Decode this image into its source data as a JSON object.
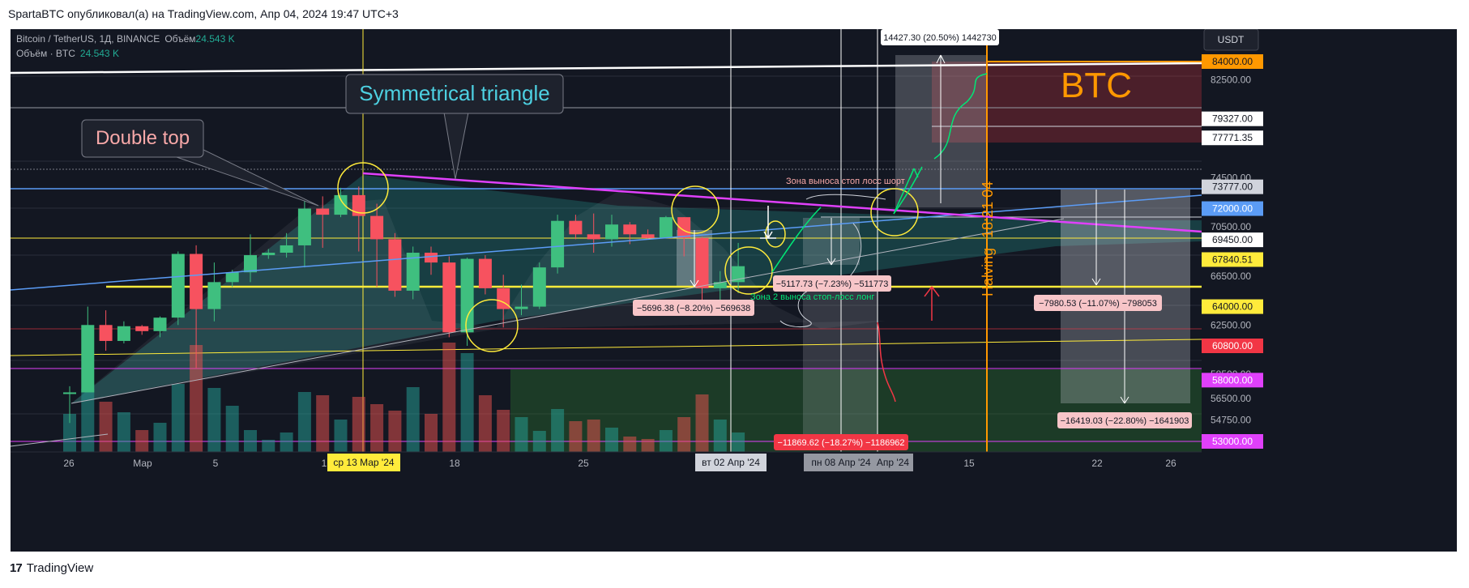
{
  "caption": "SpartaBTC опубликовал(а) на TradingView.com, Апр 04, 2024 19:47 UTC+3",
  "legend": {
    "symbol": "Bitcoin / TetherUS, 1Д, BINANCE",
    "volume_label": "Объём",
    "volume_value": "24.543 K",
    "row2_label": "Объём · BTC",
    "row2_value": "24.543 K"
  },
  "currency": "USDT",
  "price_axis": {
    "ticks": [
      "82500.00",
      "74500.00",
      "70500.00",
      "66500.00",
      "62500.00",
      "58500.00",
      "56500.00",
      "54750.00"
    ],
    "badges": [
      {
        "text": "84000.00",
        "color": "#ff9800",
        "fg": "#131722",
        "value": 84000
      },
      {
        "text": "79327.00",
        "color": "#ffffff",
        "fg": "#131722",
        "value": 79327
      },
      {
        "text": "77771.35",
        "color": "#ffffff",
        "fg": "#131722",
        "value": 77771.35
      },
      {
        "text": "73777.00",
        "color": "#d1d4dc",
        "fg": "#131722",
        "value": 73777
      },
      {
        "text": "72000.00",
        "color": "#5b9cf6",
        "fg": "#ffffff",
        "value": 72000
      },
      {
        "text": "69450.00",
        "color": "#ffffff",
        "fg": "#131722",
        "value": 69450
      },
      {
        "text": "67840.51",
        "color": "#ffeb3b",
        "fg": "#131722",
        "value": 67840.51
      },
      {
        "text": "64000.00",
        "color": "#ffeb3b",
        "fg": "#131722",
        "value": 64000
      },
      {
        "text": "60800.00",
        "color": "#f23645",
        "fg": "#ffffff",
        "value": 60800
      },
      {
        "text": "58000.00",
        "color": "#e040fb",
        "fg": "#ffffff",
        "value": 58000
      },
      {
        "text": "53000.00",
        "color": "#e040fb",
        "fg": "#ffffff",
        "value": 53000
      }
    ]
  },
  "time_axis": {
    "ticks": [
      "26",
      "Мар",
      "5",
      "1",
      "18",
      "25",
      "15",
      "22",
      "26"
    ],
    "highlight_1": "ср 13 Мар '24",
    "highlight_2": "вт 02 Апр '24",
    "highlight_3": "пн 08 Апр '24",
    "highlight_3_tail": "Апр '24"
  },
  "annotations": {
    "double_top": "Double top",
    "symmetrical_triangle": "Symmetrical triangle",
    "btc": "BTC",
    "halving": "Halving",
    "halving_countdown": "18:21 04",
    "zone_short": "Зона выноса стоп лосс шорт",
    "zone_long": "Зона 2 выноса стоп-лосс лонг"
  },
  "measures": {
    "m1": "14427.30 (20.50%) 1442730",
    "m2": "−5117.73 (−7.23%) −511773",
    "m3": "−5696.38 (−8.20%) −569638",
    "m4": "−7980.53 (−11.07%) −798053",
    "m5": "−16419.03 (−22.80%) −1641903",
    "m6": "−11869.62 (−18.27%) −1186962"
  },
  "chart_data": {
    "type": "candlestick",
    "candles": [
      {
        "date": "2024-02-27",
        "open": 57000,
        "high": 57500,
        "low": 54500,
        "close": 57000
      },
      {
        "date": "2024-02-28",
        "open": 57000,
        "high": 64000,
        "low": 57000,
        "close": 62500
      },
      {
        "date": "2024-02-29",
        "open": 62500,
        "high": 63700,
        "low": 60400,
        "close": 61200
      },
      {
        "date": "2024-03-01",
        "open": 61200,
        "high": 62800,
        "low": 61000,
        "close": 62400
      },
      {
        "date": "2024-03-02",
        "open": 62400,
        "high": 62500,
        "low": 61700,
        "close": 62000
      },
      {
        "date": "2024-03-03",
        "open": 62000,
        "high": 63200,
        "low": 61500,
        "close": 63100
      },
      {
        "date": "2024-03-04",
        "open": 63100,
        "high": 68500,
        "low": 62500,
        "close": 68300
      },
      {
        "date": "2024-03-05",
        "open": 68300,
        "high": 69000,
        "low": 59000,
        "close": 63800
      },
      {
        "date": "2024-03-06",
        "open": 63800,
        "high": 67600,
        "low": 62800,
        "close": 66000
      },
      {
        "date": "2024-03-07",
        "open": 66000,
        "high": 67000,
        "low": 65600,
        "close": 66800
      },
      {
        "date": "2024-03-08",
        "open": 66800,
        "high": 69900,
        "low": 66000,
        "close": 68200
      },
      {
        "date": "2024-03-09",
        "open": 68200,
        "high": 68700,
        "low": 67900,
        "close": 68400
      },
      {
        "date": "2024-03-10",
        "open": 68400,
        "high": 70000,
        "low": 68000,
        "close": 69000
      },
      {
        "date": "2024-03-11",
        "open": 69000,
        "high": 72800,
        "low": 67200,
        "close": 72000
      },
      {
        "date": "2024-03-12",
        "open": 72000,
        "high": 73000,
        "low": 68800,
        "close": 71500
      },
      {
        "date": "2024-03-13",
        "open": 71500,
        "high": 73700,
        "low": 71300,
        "close": 73100
      },
      {
        "date": "2024-03-14",
        "open": 73100,
        "high": 73800,
        "low": 68500,
        "close": 71400
      },
      {
        "date": "2024-03-15",
        "open": 71400,
        "high": 72400,
        "low": 65600,
        "close": 69500
      },
      {
        "date": "2024-03-16",
        "open": 69500,
        "high": 70000,
        "low": 64800,
        "close": 65300
      },
      {
        "date": "2024-03-17",
        "open": 65300,
        "high": 68900,
        "low": 64600,
        "close": 68400
      },
      {
        "date": "2024-03-18",
        "open": 68400,
        "high": 68900,
        "low": 66600,
        "close": 67600
      },
      {
        "date": "2024-03-19",
        "open": 67600,
        "high": 68100,
        "low": 61500,
        "close": 61900
      },
      {
        "date": "2024-03-20",
        "open": 61900,
        "high": 68000,
        "low": 60800,
        "close": 67900
      },
      {
        "date": "2024-03-21",
        "open": 67900,
        "high": 68200,
        "low": 65000,
        "close": 65500
      },
      {
        "date": "2024-03-22",
        "open": 65500,
        "high": 66600,
        "low": 62300,
        "close": 63800
      },
      {
        "date": "2024-03-23",
        "open": 63800,
        "high": 65800,
        "low": 63300,
        "close": 64000
      },
      {
        "date": "2024-03-24",
        "open": 64000,
        "high": 67600,
        "low": 63800,
        "close": 67200
      },
      {
        "date": "2024-03-25",
        "open": 67200,
        "high": 71500,
        "low": 66700,
        "close": 71000
      },
      {
        "date": "2024-03-26",
        "open": 71000,
        "high": 71500,
        "low": 69500,
        "close": 69900
      },
      {
        "date": "2024-03-27",
        "open": 69900,
        "high": 71600,
        "low": 68400,
        "close": 69500
      },
      {
        "date": "2024-03-28",
        "open": 69500,
        "high": 71500,
        "low": 68900,
        "close": 70700
      },
      {
        "date": "2024-03-29",
        "open": 70700,
        "high": 70900,
        "low": 69100,
        "close": 69900
      },
      {
        "date": "2024-03-30",
        "open": 69900,
        "high": 70300,
        "low": 69500,
        "close": 69600
      },
      {
        "date": "2024-03-31",
        "open": 69600,
        "high": 71400,
        "low": 69600,
        "close": 71300
      },
      {
        "date": "2024-04-01",
        "open": 71300,
        "high": 71300,
        "low": 68100,
        "close": 69600
      },
      {
        "date": "2024-04-02",
        "open": 69600,
        "high": 69700,
        "low": 64500,
        "close": 65500
      },
      {
        "date": "2024-04-03",
        "open": 65500,
        "high": 66900,
        "low": 64500,
        "close": 66000
      },
      {
        "date": "2024-04-04",
        "open": 66000,
        "high": 69200,
        "low": 65100,
        "close": 67300
      }
    ],
    "volume": [
      47,
      78,
      62,
      49,
      27,
      36,
      84,
      132,
      79,
      57,
      27,
      15,
      24,
      74,
      70,
      40,
      68,
      59,
      51,
      80,
      47,
      135,
      122,
      70,
      52,
      43,
      26,
      53,
      38,
      40,
      30,
      19,
      16,
      27,
      43,
      71,
      40,
      24
    ]
  }
}
